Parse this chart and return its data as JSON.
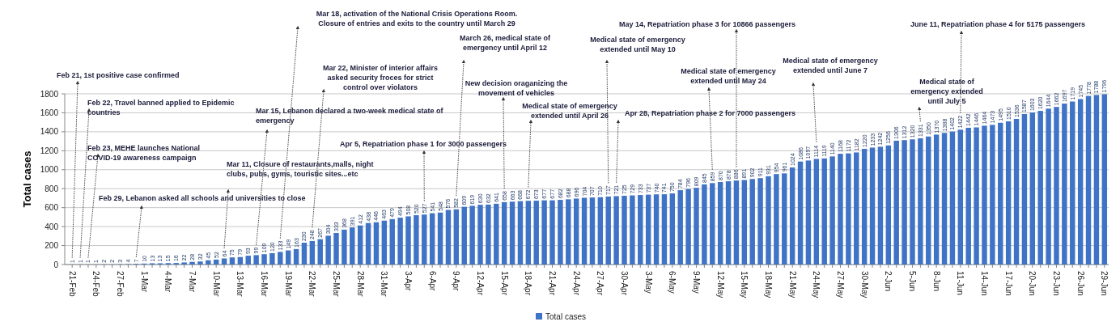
{
  "chart_data": {
    "type": "bar",
    "ylabel": "Total cases",
    "categories": [
      "21-Feb",
      null,
      null,
      "24-Feb",
      null,
      null,
      "27-Feb",
      null,
      null,
      "1-Mar",
      null,
      null,
      "4-Mar",
      null,
      null,
      "7-Mar",
      null,
      null,
      "10-Mar",
      null,
      null,
      "13-Mar",
      null,
      null,
      "16-Mar",
      null,
      null,
      "19-Mar",
      null,
      null,
      "22-Mar",
      null,
      null,
      "25-Mar",
      null,
      null,
      "28-Mar",
      null,
      null,
      "31-Mar",
      null,
      null,
      "3-Apr",
      null,
      null,
      "6-Apr",
      null,
      null,
      "9-Apr",
      null,
      null,
      "12-Apr",
      null,
      null,
      "15-Apr",
      null,
      null,
      "18-Apr",
      null,
      null,
      "21-Apr",
      null,
      null,
      "24-Apr",
      null,
      null,
      "27-Apr",
      null,
      null,
      "30-Apr",
      null,
      null,
      "3-May",
      null,
      null,
      "6-May",
      null,
      null,
      "9-May",
      null,
      null,
      "12-May",
      null,
      null,
      "15-May",
      null,
      null,
      "18-May",
      null,
      null,
      "21-May",
      null,
      null,
      "24-May",
      null,
      null,
      "27-May",
      null,
      null,
      "30-May",
      null,
      null,
      "2-Jun",
      null,
      null,
      "5-Jun",
      null,
      null,
      "8-Jun",
      null,
      null,
      "11-Jun",
      null,
      null,
      "14-Jun",
      null,
      null,
      "17-Jun",
      null,
      null,
      "20-Jun",
      null,
      null,
      "23-Jun",
      null,
      null,
      "26-Jun",
      null,
      null,
      "29-Jun"
    ],
    "series": [
      {
        "name": "Total cases",
        "color": "#3f73c6",
        "values": [
          1,
          1,
          1,
          1,
          2,
          2,
          3,
          4,
          7,
          10,
          13,
          13,
          15,
          16,
          22,
          28,
          32,
          45,
          52,
          64,
          75,
          79,
          93,
          99,
          109,
          120,
          133,
          149,
          163,
          230,
          248,
          267,
          304,
          333,
          368,
          391,
          412,
          438,
          446,
          463,
          479,
          494,
          508,
          520,
          527,
          541,
          548,
          576,
          582,
          609,
          619,
          630,
          632,
          641,
          658,
          663,
          668,
          672,
          673,
          677,
          677,
          682,
          688,
          696,
          704,
          707,
          710,
          717,
          721,
          725,
          729,
          733,
          737,
          740,
          741,
          750,
          784,
          796,
          809,
          845,
          859,
          870,
          878,
          886,
          891,
          902,
          911,
          931,
          954,
          961,
          1024,
          1086,
          1097,
          1114,
          1119,
          1140,
          1168,
          1172,
          1182,
          1220,
          1233,
          1242,
          1256,
          1306,
          1312,
          1320,
          1331,
          1350,
          1370,
          1388,
          1402,
          1422,
          1442,
          1446,
          1464,
          1473,
          1495,
          1510,
          1536,
          1587,
          1603,
          1620,
          1644,
          1662,
          1697,
          1719,
          1745,
          1778,
          1788,
          1796
        ]
      }
    ],
    "ylim": [
      0,
      1800
    ],
    "yticks": [
      0,
      200,
      400,
      600,
      800,
      1000,
      1200,
      1400,
      1600,
      1800
    ],
    "grid": "y",
    "legend": "bottom",
    "data_labels": true,
    "annotations": [
      "Feb 21, 1st positive case confirmed",
      "Feb 22, Travel banned applied to Epidemic countries",
      "Feb 23, MEHE launches National COVID-19 awareness campaign",
      "Feb 29, Lebanon asked all schools and universities to close",
      "Mar 11, Closure of restaurants,malls, night clubs, pubs, gyms, touristic sites...etc",
      "Mar 15, Lebanon declared a two-week medical state of emergency",
      "Mar 18, activation of the National Crisis Operations Room. Closure of entries and exits to the country until March 29",
      "Mar 22, Minister of interior affairs asked security froces for strict control over violators",
      "Apr 5, Repatriation phase 1 for 3000 passengers",
      "March 26, medical state of emergency until April 12",
      "New decision oraganizing the movement of vehicles",
      "Medical state of emergency extended until April 26",
      "Medical state of emergency extended until May 10",
      "Apr 28, Repatriation phase 2 for 7000 passengers",
      "May 14, Repatriation phase 3 for 10866 passengers",
      "Medical state of emergency extended until May 24",
      "Medical state of emergency extended until June 7",
      "Medical state of emergency extended until July 5",
      "June 11, Repatriation phase 4 for 5175 passengers"
    ]
  }
}
